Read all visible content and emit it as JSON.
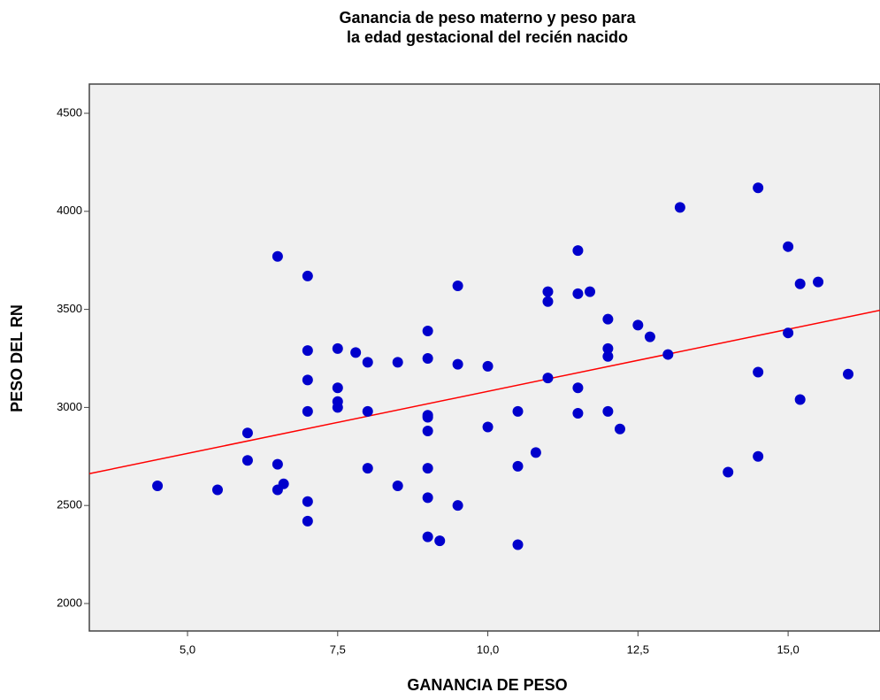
{
  "chart_data": {
    "type": "scatter",
    "title": [
      "Ganancia de peso materno y peso para",
      "la edad gestacional del recién nacido"
    ],
    "x_label": "GANANCIA DE PESO",
    "y_label": "PESO DEL RN",
    "xlim": [
      3.365,
      16.53
    ],
    "ylim": [
      1860,
      4649
    ],
    "xticks": [
      {
        "value": 5,
        "label": "5,0"
      },
      {
        "value": 7.5,
        "label": "7,5"
      },
      {
        "value": 10,
        "label": "10,0"
      },
      {
        "value": 12.5,
        "label": "12,5"
      },
      {
        "value": 15,
        "label": "15,0"
      }
    ],
    "yticks": [
      2000,
      2500,
      3000,
      3500,
      4000,
      4500
    ],
    "series": [
      {
        "color": "#0000cc",
        "x": [
          4.5,
          5.5,
          6.0,
          6.0,
          6.5,
          6.5,
          6.5,
          6.6,
          7.0,
          7.0,
          7.0,
          7.0,
          7.0,
          7.0,
          7.5,
          7.5,
          7.5,
          7.5,
          7.8,
          8.0,
          8.0,
          8.0,
          8.5,
          8.5,
          9.0,
          9.0,
          9.0,
          9.0,
          9.0,
          9.0,
          9.0,
          9.0,
          9.2,
          9.5,
          9.5,
          9.5,
          10.0,
          10.0,
          10.5,
          10.5,
          10.5,
          10.8,
          11.0,
          11.0,
          11.0,
          11.5,
          11.5,
          11.5,
          11.5,
          11.7,
          12.0,
          12.0,
          12.0,
          12.0,
          12.2,
          12.5,
          12.7,
          13.0,
          13.2,
          14.0,
          14.5,
          14.5,
          14.5,
          15.0,
          15.0,
          15.2,
          15.2,
          15.5,
          16.0
        ],
        "values": [
          2600,
          2580,
          2870,
          2730,
          3770,
          2710,
          2580,
          2610,
          3670,
          3290,
          3140,
          2980,
          2520,
          2420,
          3300,
          3100,
          3030,
          3000,
          3280,
          3230,
          2980,
          2690,
          3230,
          2600,
          3390,
          3250,
          2960,
          2950,
          2880,
          2690,
          2540,
          2340,
          2320,
          3620,
          3220,
          2500,
          3210,
          2900,
          2980,
          2700,
          2300,
          2770,
          3590,
          3540,
          3150,
          3800,
          3580,
          3100,
          2970,
          3590,
          3450,
          3300,
          3260,
          2980,
          2890,
          3420,
          3360,
          3270,
          4020,
          2670,
          4120,
          3180,
          2750,
          3820,
          3380,
          3630,
          3040,
          3640,
          3170
        ]
      }
    ],
    "fit_line": {
      "intercept": 2449,
      "slope": 63.3,
      "color": "#ff0000"
    }
  }
}
